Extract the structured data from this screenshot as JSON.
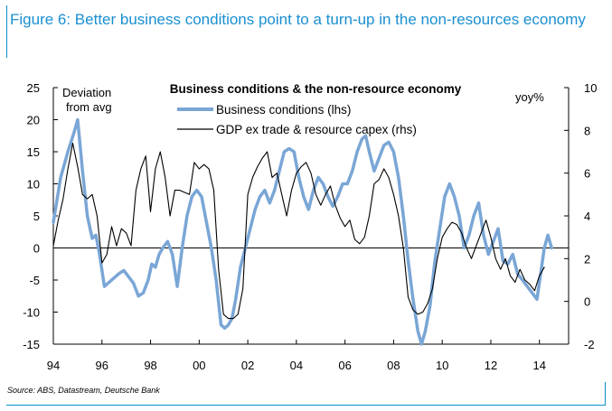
{
  "figure_title": "Figure 6: Better business conditions point to a turn-up in the non-resources economy",
  "source": "Source: ABS, Datastream, Deutsche Bank",
  "colors": {
    "title": "#1a8fd1",
    "frame": "#0a8fc7",
    "business_line": "#7aa6d6",
    "gdp_line": "#000000"
  },
  "chart_data": {
    "type": "line",
    "title": "Business conditions & the non-resource economy",
    "left_axis_label": "Deviation from avg",
    "left_axis_label_lines": [
      "Deviation",
      "from avg"
    ],
    "right_axis_label": "yoy%",
    "ylim_left": [
      -15,
      25
    ],
    "ylim_right": [
      -2,
      10
    ],
    "xlim": [
      1994,
      2015.2
    ],
    "yticks_left": [
      25,
      20,
      15,
      10,
      5,
      0,
      -5,
      -10,
      -15
    ],
    "yticks_left_labels": [
      "25",
      "20",
      "15",
      "10",
      "5",
      "0",
      "-5",
      "-10",
      "-15"
    ],
    "yticks_right": [
      10,
      8,
      6,
      4,
      2,
      0,
      -2
    ],
    "yticks_right_labels": [
      "10",
      "8",
      "6",
      "4",
      "2",
      "0",
      "-2"
    ],
    "xticks": [
      1994,
      1996,
      1998,
      2000,
      2002,
      2004,
      2006,
      2008,
      2010,
      2012,
      2014
    ],
    "xtick_labels": [
      "94",
      "96",
      "98",
      "00",
      "02",
      "04",
      "06",
      "08",
      "10",
      "12",
      "14"
    ],
    "series": [
      {
        "name": "Business conditions (lhs)",
        "axis": "left",
        "x": [
          1994.0,
          1994.3,
          1994.6,
          1994.85,
          1995.0,
          1995.2,
          1995.4,
          1995.6,
          1995.75,
          1995.9,
          1996.1,
          1996.4,
          1996.7,
          1996.9,
          1997.1,
          1997.3,
          1997.5,
          1997.7,
          1997.9,
          1998.05,
          1998.2,
          1998.35,
          1998.5,
          1998.7,
          1998.9,
          1999.1,
          1999.3,
          1999.5,
          1999.7,
          1999.9,
          2000.1,
          2000.3,
          2000.5,
          2000.7,
          2000.9,
          2001.05,
          2001.2,
          2001.35,
          2001.5,
          2001.7,
          2001.9,
          2002.1,
          2002.3,
          2002.5,
          2002.7,
          2002.9,
          2003.1,
          2003.3,
          2003.5,
          2003.7,
          2003.9,
          2004.1,
          2004.3,
          2004.5,
          2004.7,
          2004.9,
          2005.1,
          2005.3,
          2005.5,
          2005.7,
          2005.9,
          2006.1,
          2006.3,
          2006.5,
          2006.7,
          2006.85,
          2007.0,
          2007.2,
          2007.4,
          2007.6,
          2007.8,
          2008.0,
          2008.2,
          2008.4,
          2008.6,
          2008.8,
          2009.0,
          2009.15,
          2009.3,
          2009.5,
          2009.7,
          2009.9,
          2010.1,
          2010.3,
          2010.5,
          2010.7,
          2010.9,
          2011.1,
          2011.3,
          2011.5,
          2011.7,
          2011.9,
          2012.1,
          2012.3,
          2012.5,
          2012.7,
          2012.9,
          2013.1,
          2013.3,
          2013.5,
          2013.7,
          2013.9,
          2014.05,
          2014.2,
          2014.35,
          2014.5
        ],
        "y": [
          4,
          11,
          15,
          18,
          20,
          12,
          5,
          1.5,
          2,
          -1,
          -6,
          -5,
          -4,
          -3.5,
          -4.5,
          -5.5,
          -7.5,
          -7,
          -5,
          -2.5,
          -3,
          -1,
          0,
          1,
          -1,
          -6,
          0,
          5,
          8,
          9,
          8,
          4,
          0,
          -5,
          -12,
          -12.5,
          -12,
          -11,
          -8,
          -3,
          0,
          3,
          6,
          8,
          9,
          7,
          9,
          12,
          15,
          15.5,
          15,
          11,
          8,
          6,
          9,
          11,
          10,
          8,
          6.5,
          8,
          10,
          10,
          12,
          15,
          17,
          17.5,
          15,
          12,
          14,
          16,
          16.5,
          15,
          11,
          5,
          -2,
          -8,
          -13,
          -15,
          -13,
          -9,
          -2,
          3,
          8,
          10,
          8,
          5,
          0,
          2,
          5,
          7,
          2,
          -1,
          1,
          3,
          -2,
          -2.5,
          -1,
          -4,
          -5,
          -6,
          -7,
          -8,
          -4,
          0,
          2,
          0
        ]
      },
      {
        "name": "GDP ex trade & resource capex (rhs)",
        "axis": "right",
        "x": [
          1994.0,
          1994.2,
          1994.4,
          1994.6,
          1994.8,
          1995.0,
          1995.2,
          1995.4,
          1995.6,
          1995.8,
          1996.0,
          1996.2,
          1996.4,
          1996.6,
          1996.8,
          1997.0,
          1997.2,
          1997.4,
          1997.6,
          1997.8,
          1998.0,
          1998.2,
          1998.4,
          1998.6,
          1998.8,
          1999.0,
          1999.2,
          1999.4,
          1999.6,
          1999.8,
          2000.0,
          2000.2,
          2000.4,
          2000.6,
          2000.8,
          2001.0,
          2001.2,
          2001.4,
          2001.6,
          2001.8,
          2002.0,
          2002.2,
          2002.4,
          2002.6,
          2002.8,
          2003.0,
          2003.2,
          2003.4,
          2003.6,
          2003.8,
          2004.0,
          2004.2,
          2004.4,
          2004.6,
          2004.8,
          2005.0,
          2005.2,
          2005.4,
          2005.6,
          2005.8,
          2006.0,
          2006.2,
          2006.4,
          2006.6,
          2006.8,
          2007.0,
          2007.2,
          2007.4,
          2007.6,
          2007.8,
          2008.0,
          2008.2,
          2008.4,
          2008.6,
          2008.8,
          2009.0,
          2009.2,
          2009.4,
          2009.6,
          2009.8,
          2010.0,
          2010.2,
          2010.4,
          2010.6,
          2010.8,
          2011.0,
          2011.2,
          2011.4,
          2011.6,
          2011.8,
          2012.0,
          2012.2,
          2012.4,
          2012.6,
          2012.8,
          2013.0,
          2013.2,
          2013.4,
          2013.6,
          2013.8,
          2014.0,
          2014.2
        ],
        "y": [
          2.6,
          3.8,
          4.8,
          6.2,
          7.4,
          6.3,
          5.0,
          4.8,
          5.0,
          4.0,
          1.8,
          2.2,
          3.5,
          2.6,
          3.4,
          3.2,
          2.6,
          5.2,
          6.2,
          6.8,
          4.2,
          6.2,
          7.0,
          5.8,
          4.0,
          5.2,
          5.2,
          5.1,
          5.0,
          6.5,
          6.2,
          6.4,
          6.2,
          5.2,
          1.5,
          -0.6,
          -0.8,
          -0.8,
          -0.6,
          0.6,
          5.0,
          5.8,
          6.3,
          6.7,
          7.0,
          5.8,
          6.0,
          5.0,
          4.0,
          5.2,
          6.0,
          6.3,
          6.5,
          6.0,
          5.0,
          4.5,
          5.0,
          5.4,
          4.5,
          3.9,
          3.5,
          3.8,
          2.9,
          2.7,
          3.0,
          4.0,
          5.5,
          5.7,
          6.2,
          5.8,
          5.0,
          4.0,
          2.5,
          0.2,
          -0.4,
          -0.6,
          -0.5,
          -0.1,
          0.6,
          2.0,
          3.0,
          3.4,
          3.7,
          3.6,
          3.2,
          2.5,
          2.0,
          2.6,
          3.2,
          3.8,
          3.0,
          2.0,
          1.5,
          2.0,
          1.2,
          0.9,
          1.5,
          1.0,
          0.8,
          0.5,
          1.2,
          1.6
        ]
      }
    ]
  }
}
